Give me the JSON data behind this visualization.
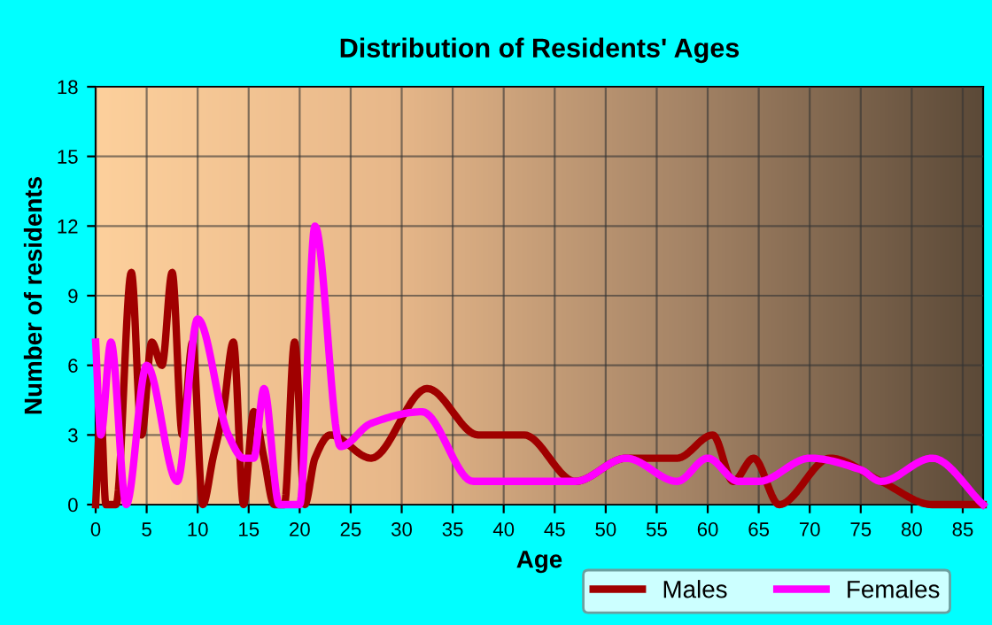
{
  "chart_data": {
    "type": "line",
    "title": "Distribution of Residents' Ages",
    "xlabel": "Age",
    "ylabel": "Number of residents",
    "xlim": [
      0,
      87
    ],
    "xticks": [
      0,
      5,
      10,
      15,
      20,
      25,
      30,
      35,
      40,
      45,
      50,
      55,
      60,
      65,
      70,
      75,
      80,
      85
    ],
    "ylim": [
      0,
      18
    ],
    "yticks": [
      0,
      3,
      6,
      9,
      12,
      15,
      18
    ],
    "grid": true,
    "legend": "bottom",
    "marker": "none",
    "line_style": "solid",
    "series": [
      {
        "name": "Males",
        "color": "#a00000",
        "x": [
          0,
          0.5,
          1,
          2,
          3.5,
          4.5,
          5.5,
          6.5,
          7.5,
          8.5,
          9.5,
          10.5,
          11.5,
          12.5,
          13.5,
          14.5,
          15.5,
          16.5,
          17.5,
          18.5,
          19.5,
          20.5,
          21.5,
          23,
          27,
          32.5,
          37.5,
          42,
          47,
          52,
          57,
          60.5,
          62.5,
          64.5,
          67,
          72,
          77,
          82,
          87
        ],
        "values": [
          0,
          4,
          0,
          0,
          10,
          3,
          7,
          6,
          10,
          3,
          7,
          0,
          2,
          4,
          7,
          0,
          4,
          2,
          0,
          0,
          7,
          0,
          2,
          3,
          2,
          5,
          3,
          3,
          1,
          2,
          2,
          3,
          1,
          2,
          0,
          2,
          1,
          0,
          0
        ]
      },
      {
        "name": "Females",
        "color": "#ff00ff",
        "x": [
          0,
          0.5,
          1.5,
          3,
          5,
          8,
          10,
          13,
          14.5,
          15.5,
          16.5,
          18,
          20,
          21.5,
          24,
          27,
          32,
          37,
          42,
          47,
          52,
          57,
          60,
          63,
          65,
          70,
          75,
          77,
          82,
          87
        ],
        "values": [
          7,
          3,
          7,
          0,
          6,
          1,
          8,
          3,
          2,
          2,
          5,
          0,
          0,
          12,
          2.5,
          3.5,
          4,
          1,
          1,
          1,
          2,
          1,
          2,
          1,
          1,
          2,
          1.5,
          1,
          2,
          0
        ]
      }
    ]
  }
}
